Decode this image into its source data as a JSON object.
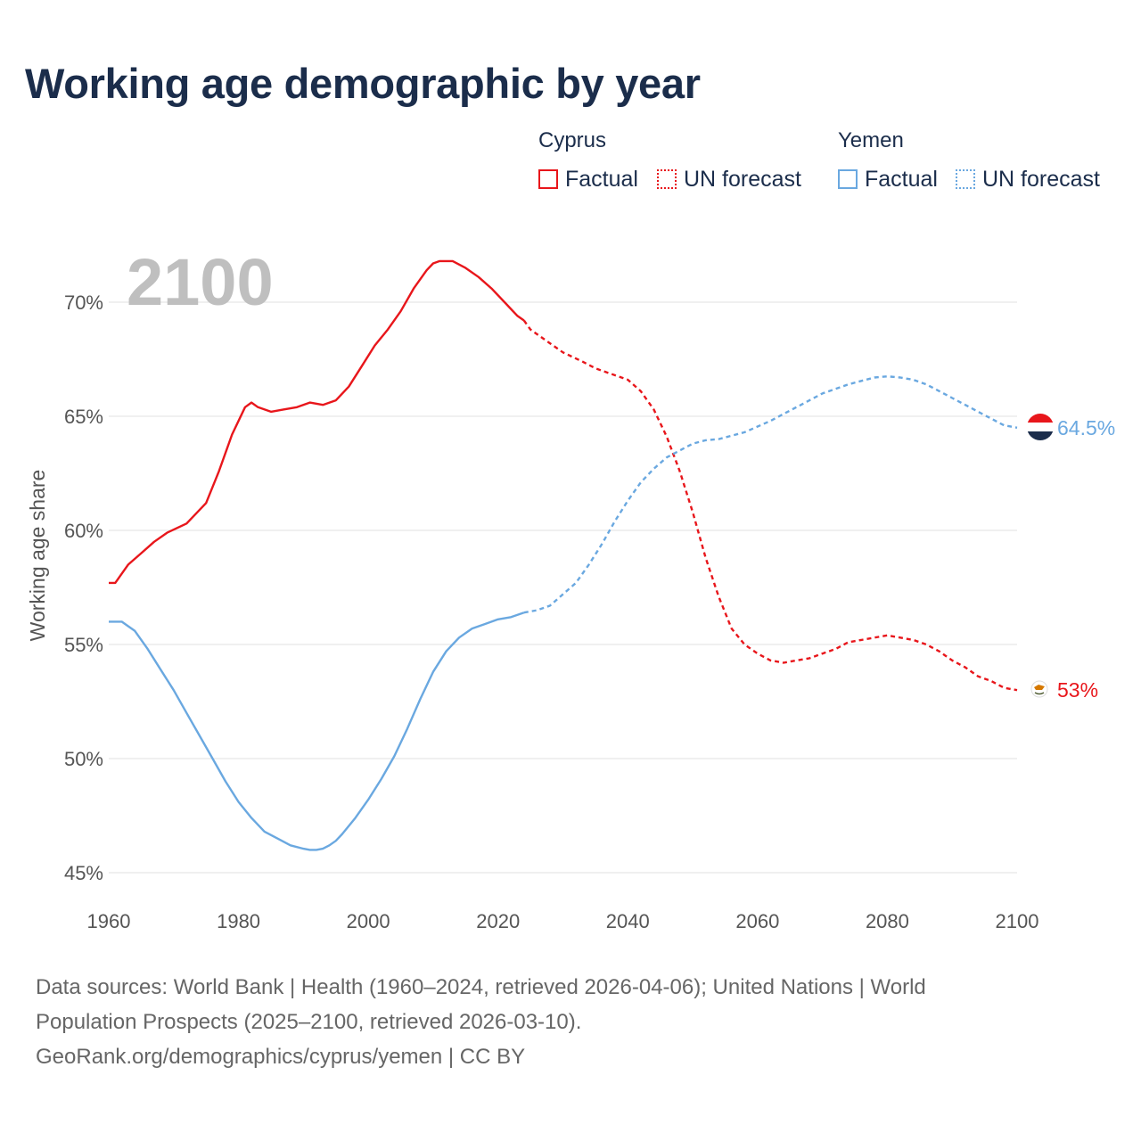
{
  "title": "Working age demographic by year",
  "legend": {
    "groups": [
      {
        "name": "Cyprus",
        "factual_label": "Factual",
        "forecast_label": "UN forecast",
        "color": "#e8161b"
      },
      {
        "name": "Yemen",
        "factual_label": "Factual",
        "forecast_label": "UN forecast",
        "color": "#6aa8e0"
      }
    ]
  },
  "year_display": "2100",
  "footer": {
    "line1": "Data sources: World Bank | Health (1960–2024, retrieved 2026-04-06); United Nations | World",
    "line2": "Population Prospects (2025–2100, retrieved 2026-03-10).",
    "line3": "GeoRank.org/demographics/cyprus/yemen | CC BY"
  },
  "chart_data": {
    "type": "line",
    "title": "Working age demographic by year",
    "xlabel": "",
    "ylabel": "Working age share",
    "xlim": [
      1960,
      2100
    ],
    "ylim": [
      45,
      72.5
    ],
    "x_ticks": [
      1960,
      1980,
      2000,
      2020,
      2040,
      2060,
      2080,
      2100
    ],
    "x_tick_labels": [
      "1960",
      "1980",
      "2000",
      "2020",
      "2040",
      "2060",
      "2080",
      "2100"
    ],
    "y_ticks": [
      45,
      50,
      55,
      60,
      65,
      70
    ],
    "y_tick_labels": [
      "45%",
      "50%",
      "55%",
      "60%",
      "65%",
      "70%"
    ],
    "grid": true,
    "series": [
      {
        "name": "Cyprus",
        "color": "#e8161b",
        "factual_end": 2024,
        "end_label": "53%",
        "x": [
          1960,
          1961,
          1962,
          1963,
          1965,
          1967,
          1969,
          1972,
          1975,
          1977,
          1979,
          1981,
          1982,
          1983,
          1985,
          1987,
          1989,
          1991,
          1993,
          1995,
          1997,
          1999,
          2001,
          2003,
          2005,
          2007,
          2009,
          2010,
          2011,
          2012,
          2013,
          2015,
          2017,
          2019,
          2021,
          2023,
          2024,
          2025,
          2027,
          2030,
          2033,
          2035,
          2038,
          2040,
          2042,
          2044,
          2046,
          2048,
          2050,
          2052,
          2054,
          2056,
          2058,
          2060,
          2062,
          2064,
          2066,
          2068,
          2070,
          2072,
          2074,
          2076,
          2078,
          2080,
          2082,
          2084,
          2086,
          2088,
          2090,
          2092,
          2094,
          2096,
          2098,
          2100
        ],
        "values": [
          57.7,
          57.7,
          58.1,
          58.5,
          59.0,
          59.5,
          59.9,
          60.3,
          61.2,
          62.6,
          64.2,
          65.4,
          65.6,
          65.4,
          65.2,
          65.3,
          65.4,
          65.6,
          65.5,
          65.7,
          66.3,
          67.2,
          68.1,
          68.8,
          69.6,
          70.6,
          71.4,
          71.7,
          71.8,
          71.8,
          71.8,
          71.5,
          71.1,
          70.6,
          70.0,
          69.4,
          69.2,
          68.8,
          68.4,
          67.8,
          67.4,
          67.1,
          66.8,
          66.6,
          66.1,
          65.3,
          64.1,
          62.6,
          60.8,
          58.8,
          57.1,
          55.7,
          55.0,
          54.6,
          54.3,
          54.2,
          54.3,
          54.4,
          54.6,
          54.8,
          55.1,
          55.2,
          55.3,
          55.4,
          55.3,
          55.2,
          55.0,
          54.7,
          54.3,
          54.0,
          53.6,
          53.4,
          53.1,
          53.0
        ]
      },
      {
        "name": "Yemen",
        "color": "#6aa8e0",
        "factual_end": 2024,
        "end_label": "64.5%",
        "x": [
          1960,
          1961,
          1962,
          1963,
          1964,
          1966,
          1968,
          1970,
          1972,
          1974,
          1976,
          1978,
          1980,
          1982,
          1984,
          1986,
          1988,
          1990,
          1991,
          1992,
          1993,
          1994,
          1995,
          1996,
          1998,
          2000,
          2002,
          2004,
          2006,
          2008,
          2010,
          2012,
          2014,
          2016,
          2018,
          2020,
          2022,
          2024,
          2026,
          2028,
          2030,
          2032,
          2034,
          2036,
          2038,
          2040,
          2042,
          2044,
          2046,
          2048,
          2050,
          2052,
          2054,
          2056,
          2058,
          2060,
          2062,
          2064,
          2066,
          2068,
          2070,
          2072,
          2074,
          2076,
          2078,
          2080,
          2082,
          2084,
          2086,
          2088,
          2090,
          2092,
          2094,
          2096,
          2098,
          2100
        ],
        "values": [
          56.0,
          56.0,
          56.0,
          55.8,
          55.6,
          54.8,
          53.9,
          53.0,
          52.0,
          51.0,
          50.0,
          49.0,
          48.1,
          47.4,
          46.8,
          46.5,
          46.2,
          46.05,
          46.0,
          46.0,
          46.05,
          46.2,
          46.4,
          46.7,
          47.4,
          48.2,
          49.1,
          50.1,
          51.3,
          52.6,
          53.8,
          54.7,
          55.3,
          55.7,
          55.9,
          56.1,
          56.2,
          56.4,
          56.5,
          56.7,
          57.2,
          57.7,
          58.5,
          59.4,
          60.4,
          61.3,
          62.1,
          62.7,
          63.2,
          63.5,
          63.8,
          63.95,
          64.0,
          64.15,
          64.3,
          64.55,
          64.8,
          65.1,
          65.4,
          65.7,
          66.0,
          66.2,
          66.4,
          66.55,
          66.7,
          66.75,
          66.7,
          66.6,
          66.4,
          66.1,
          65.8,
          65.5,
          65.2,
          64.9,
          64.6,
          64.5
        ]
      }
    ]
  }
}
